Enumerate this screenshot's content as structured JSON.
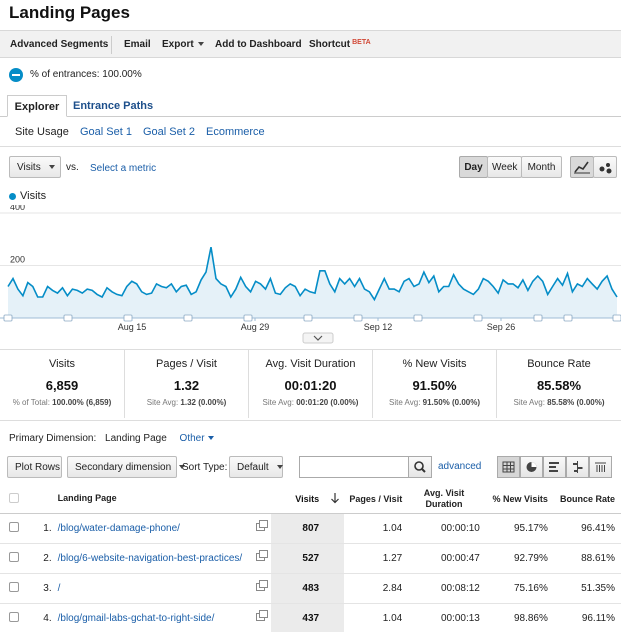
{
  "page_title": "Landing Pages",
  "toolbar": {
    "advanced_segments": "Advanced Segments",
    "email": "Email",
    "export": "Export",
    "add_to_dashboard": "Add to Dashboard",
    "shortcut": "Shortcut",
    "beta": "BETA"
  },
  "segment": {
    "label": "% of entrances: 100.00%"
  },
  "tabs": [
    {
      "label": "Explorer",
      "active": true
    },
    {
      "label": "Entrance Paths",
      "active": false
    }
  ],
  "subtabs": [
    {
      "label": "Site Usage",
      "active": true
    },
    {
      "label": "Goal Set 1"
    },
    {
      "label": "Goal Set 2"
    },
    {
      "label": "Ecommerce"
    }
  ],
  "metric_controls": {
    "metric_select": "Visits",
    "vs": "vs.",
    "select_metric_link": "Select a metric",
    "granularity": [
      "Day",
      "Week",
      "Month"
    ],
    "active_granularity": "Day",
    "chart_types": [
      "line-chart-icon",
      "motion-chart-icon"
    ]
  },
  "chart_data": {
    "type": "area",
    "series": [
      {
        "name": "Visits",
        "color": "#058dc7",
        "values": [
          120,
          150,
          110,
          85,
          135,
          120,
          80,
          80,
          120,
          105,
          95,
          115,
          85,
          110,
          105,
          95,
          110,
          105,
          90,
          80,
          115,
          100,
          90,
          85,
          120,
          140,
          130,
          100,
          90,
          95,
          130,
          120,
          115,
          130,
          100,
          120,
          125,
          90,
          100,
          145,
          175,
          270,
          150,
          130,
          120,
          80,
          110,
          155,
          120,
          100,
          140,
          130,
          110,
          150,
          95,
          90,
          115,
          130,
          120,
          85,
          110,
          100,
          95,
          180,
          180,
          130,
          100,
          150,
          130,
          150,
          120,
          150,
          110,
          100,
          70,
          110,
          150,
          110,
          110,
          100,
          140,
          150,
          120,
          130,
          175,
          135,
          160,
          100,
          120,
          120,
          165,
          130,
          110,
          100,
          90,
          110,
          150,
          140,
          120,
          95,
          145,
          130,
          130,
          115,
          145,
          105,
          140,
          160,
          140,
          90,
          120,
          150,
          125,
          170,
          100,
          130,
          120,
          150,
          130,
          110,
          140,
          160,
          110,
          80
        ]
      }
    ],
    "x_tick_labels": [
      "Aug 15",
      "Aug 29",
      "Sep 12",
      "Sep 26"
    ],
    "y_tick_labels": [
      "400",
      "200"
    ],
    "ylim": [
      0,
      400
    ],
    "legend_placement": "top-left",
    "grid": true
  },
  "scorecards": [
    {
      "label": "Visits",
      "value": "6,859",
      "sub_prefix": "% of Total: ",
      "sub_value": "100.00% (6,859)"
    },
    {
      "label": "Pages / Visit",
      "value": "1.32",
      "sub_prefix": "Site Avg: ",
      "sub_value": "1.32 (0.00%)"
    },
    {
      "label": "Avg. Visit Duration",
      "value": "00:01:20",
      "sub_prefix": "Site Avg: ",
      "sub_value": "00:01:20 (0.00%)"
    },
    {
      "label": "% New Visits",
      "value": "91.50%",
      "sub_prefix": "Site Avg: ",
      "sub_value": "91.50% (0.00%)"
    },
    {
      "label": "Bounce Rate",
      "value": "85.58%",
      "sub_prefix": "Site Avg: ",
      "sub_value": "85.58% (0.00%)"
    }
  ],
  "dimension": {
    "label": "Primary Dimension:",
    "active": "Landing Page",
    "other": "Other"
  },
  "table_controls": {
    "plot_rows": "Plot Rows",
    "secondary_dimension": "Secondary dimension",
    "sort_type_label": "Sort Type:",
    "sort_type_value": "Default",
    "search_value": "",
    "advanced_link": "advanced",
    "view_icons": [
      "table-view-icon",
      "pie-view-icon",
      "bar-view-icon",
      "comparison-view-icon",
      "pivot-view-icon"
    ]
  },
  "table": {
    "headers": {
      "landing_page": "Landing Page",
      "visits": "Visits",
      "pages_visit": "Pages / Visit",
      "avg_duration": "Avg. Visit Duration",
      "new_visits": "% New Visits",
      "bounce_rate": "Bounce Rate"
    },
    "rows": [
      {
        "num": "1.",
        "page": "/blog/water-damage-phone/",
        "visits": "807",
        "pages_visit": "1.04",
        "duration": "00:00:10",
        "new_visits": "95.17%",
        "bounce": "96.41%"
      },
      {
        "num": "2.",
        "page": "/blog/6-website-navigation-best-practices/",
        "visits": "527",
        "pages_visit": "1.27",
        "duration": "00:00:47",
        "new_visits": "92.79%",
        "bounce": "88.61%"
      },
      {
        "num": "3.",
        "page": "/",
        "visits": "483",
        "pages_visit": "2.84",
        "duration": "00:08:12",
        "new_visits": "75.16%",
        "bounce": "51.35%"
      },
      {
        "num": "4.",
        "page": "/blog/gmail-labs-gchat-to-right-side/",
        "visits": "437",
        "pages_visit": "1.04",
        "duration": "00:00:13",
        "new_visits": "98.86%",
        "bounce": "96.11%"
      }
    ]
  }
}
